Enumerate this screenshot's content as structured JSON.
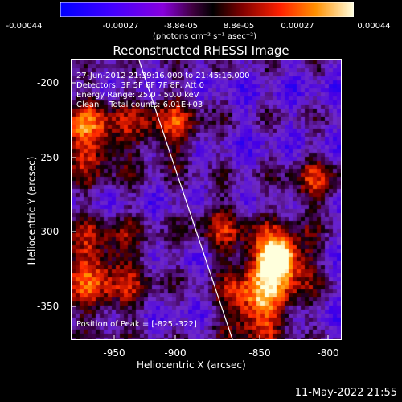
{
  "colorbar": {
    "ticks": [
      "-0.00044",
      "-0.00027",
      "-8.8e-05",
      "8.8e-05",
      "0.00027",
      "0.00044"
    ],
    "units": "(photons cm⁻² s⁻¹ asec⁻²)"
  },
  "title": "Reconstructed RHESSI Image",
  "info": {
    "time_range": "27-Jun-2012 21:39:16.000 to 21:45:16.000",
    "detectors": "Detectors: 3F 5F 6F 7F 8F, Att 0",
    "energy": "Energy Range: 25.0 - 50.0 keV",
    "clean": "Clean    Total counts: 6.01E+03",
    "peak": "Position of Peak = [-825,-322]"
  },
  "axes": {
    "xlabel": "Heliocentric X (arcsec)",
    "ylabel": "Heliocentric Y (arcsec)",
    "xticks": [
      "-950",
      "-900",
      "-850",
      "-800"
    ],
    "yticks": [
      "-200",
      "-250",
      "-300",
      "-350"
    ]
  },
  "timestamp": "11-May-2022 21:55",
  "colors": {
    "background": "#000000",
    "limb_line": "#ffffff"
  }
}
